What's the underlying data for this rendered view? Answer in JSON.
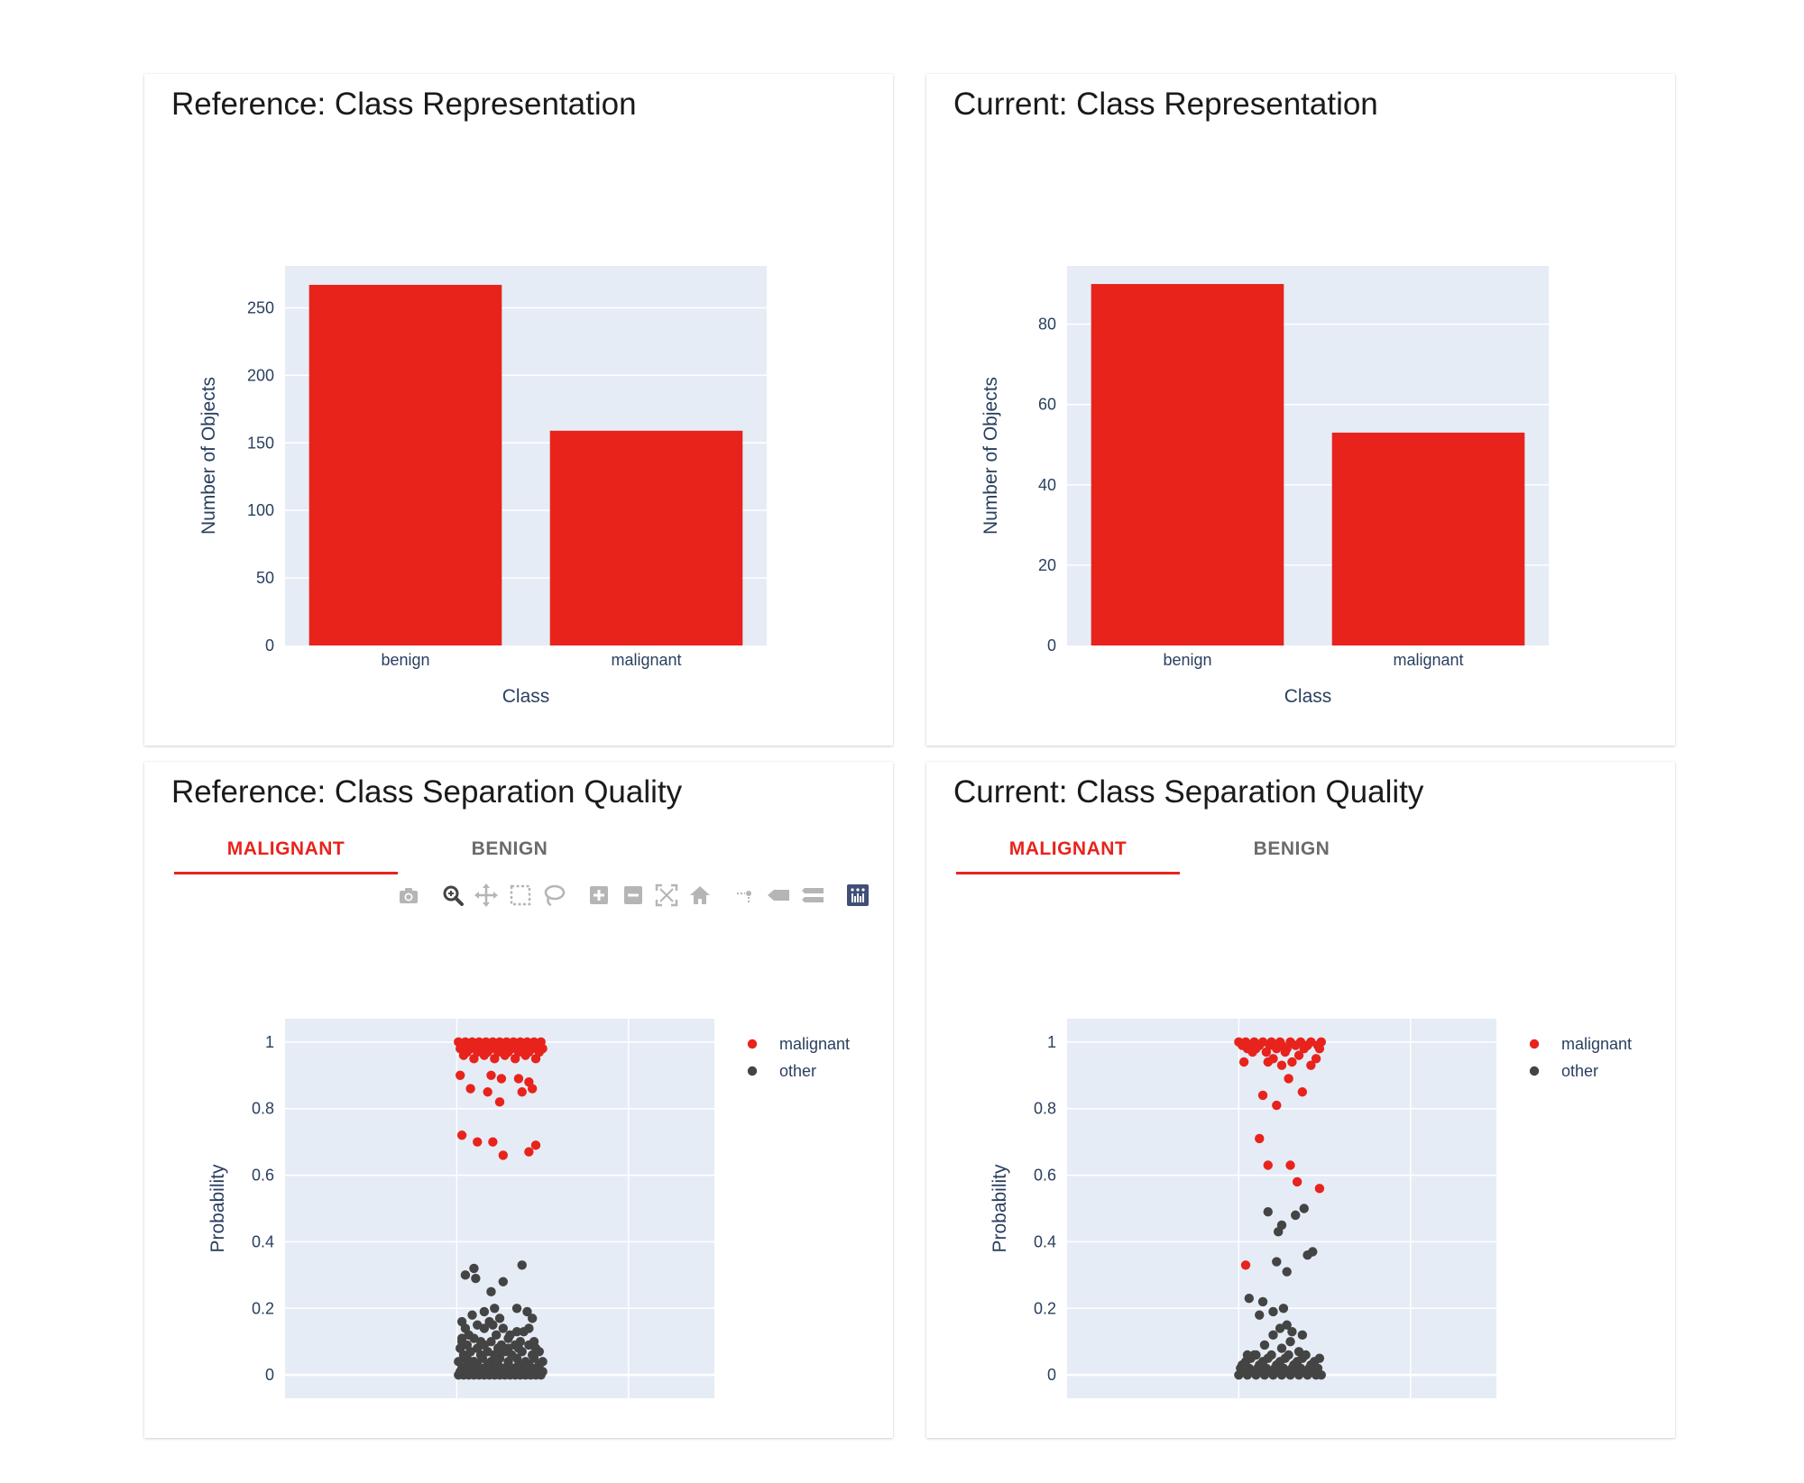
{
  "panels": {
    "ref_repr": {
      "title": "Reference: Class Representation"
    },
    "cur_repr": {
      "title": "Current: Class Representation"
    },
    "ref_sep": {
      "title": "Reference: Class Separation Quality",
      "tabs": [
        {
          "label": "MALIGNANT",
          "active": true
        },
        {
          "label": "BENIGN",
          "active": false
        }
      ]
    },
    "cur_sep": {
      "title": "Current: Class Separation Quality",
      "tabs": [
        {
          "label": "MALIGNANT",
          "active": true
        },
        {
          "label": "BENIGN",
          "active": false
        }
      ]
    }
  },
  "modebar_icons": [
    "camera-icon",
    "zoom-icon",
    "pan-icon",
    "box-select-icon",
    "lasso-select-icon",
    "zoom-in-icon",
    "zoom-out-icon",
    "autoscale-icon",
    "reset-axes-icon",
    "spike-lines-icon",
    "hover-closest-icon",
    "hover-compare-icon",
    "plotly-logo-icon"
  ],
  "colors": {
    "bar": "#e8231c",
    "malignant": "#e8231c",
    "other": "#444444",
    "plot_bg": "#e5ecf6",
    "grid": "#ffffff",
    "accent": "#e8231c"
  },
  "chart_data": [
    {
      "id": "ref_repr",
      "type": "bar",
      "title": "Reference: Class Representation",
      "categories": [
        "benign",
        "malignant"
      ],
      "values": [
        267,
        159
      ],
      "xlabel": "Class",
      "ylabel": "Number of Objects",
      "ylim": [
        0,
        281
      ],
      "yticks": [
        0,
        50,
        100,
        150,
        200,
        250
      ],
      "grid": true
    },
    {
      "id": "cur_repr",
      "type": "bar",
      "title": "Current: Class Representation",
      "categories": [
        "benign",
        "malignant"
      ],
      "values": [
        90,
        53
      ],
      "xlabel": "Class",
      "ylabel": "Number of Objects",
      "ylim": [
        0,
        94.5
      ],
      "yticks": [
        0,
        20,
        40,
        60,
        80
      ],
      "grid": true
    },
    {
      "id": "ref_sep",
      "type": "scatter",
      "title": "Reference: Class Separation Quality",
      "ylabel": "Probability",
      "ylim": [
        -0.07,
        1.07
      ],
      "yticks": [
        0,
        0.2,
        0.4,
        0.6,
        0.8,
        1
      ],
      "xlim": [
        -1,
        1.5
      ],
      "xgrid": [
        0,
        1
      ],
      "legend": "top-right",
      "series": [
        {
          "name": "malignant",
          "x": [
            0.01,
            0.05,
            0.09,
            0.13,
            0.17,
            0.21,
            0.25,
            0.29,
            0.33,
            0.37,
            0.41,
            0.45,
            0.49,
            0.03,
            0.07,
            0.11,
            0.15,
            0.19,
            0.23,
            0.27,
            0.31,
            0.35,
            0.39,
            0.43,
            0.47,
            0.02,
            0.08,
            0.14,
            0.2,
            0.26,
            0.32,
            0.38,
            0.44,
            0.5,
            0.06,
            0.12,
            0.18,
            0.24,
            0.3,
            0.36,
            0.42,
            0.48,
            0.04,
            0.16,
            0.28,
            0.4,
            0.1,
            0.22,
            0.34,
            0.46,
            0.02,
            0.2,
            0.26,
            0.36,
            0.42,
            0.44,
            0.08,
            0.38,
            0.18,
            0.25,
            0.03,
            0.12,
            0.21,
            0.27,
            0.42,
            0.46
          ],
          "y": [
            1,
            1,
            1,
            1,
            1,
            1,
            1,
            1,
            1,
            1,
            1,
            1,
            1,
            0.99,
            0.99,
            0.99,
            0.99,
            0.99,
            0.99,
            0.99,
            0.99,
            0.99,
            0.99,
            0.99,
            0.99,
            0.98,
            0.98,
            0.98,
            0.98,
            0.98,
            0.98,
            0.98,
            0.98,
            0.98,
            0.97,
            0.97,
            0.97,
            0.97,
            0.97,
            0.97,
            0.97,
            0.97,
            0.96,
            0.96,
            0.96,
            0.96,
            0.95,
            0.95,
            0.95,
            0.95,
            0.9,
            0.9,
            0.89,
            0.89,
            0.88,
            0.86,
            0.86,
            0.85,
            0.85,
            0.82,
            0.72,
            0.7,
            0.7,
            0.66,
            0.67,
            0.69
          ]
        },
        {
          "name": "other",
          "x": [
            0.01,
            0.04,
            0.07,
            0.1,
            0.13,
            0.16,
            0.19,
            0.22,
            0.25,
            0.28,
            0.31,
            0.34,
            0.37,
            0.4,
            0.43,
            0.46,
            0.49,
            0.02,
            0.05,
            0.08,
            0.11,
            0.14,
            0.17,
            0.2,
            0.23,
            0.26,
            0.29,
            0.32,
            0.35,
            0.38,
            0.41,
            0.44,
            0.47,
            0.5,
            0.03,
            0.09,
            0.15,
            0.21,
            0.27,
            0.33,
            0.39,
            0.45,
            0.06,
            0.12,
            0.18,
            0.24,
            0.3,
            0.36,
            0.42,
            0.48,
            0.01,
            0.1,
            0.2,
            0.3,
            0.4,
            0.5,
            0.05,
            0.15,
            0.25,
            0.35,
            0.45,
            0.04,
            0.14,
            0.22,
            0.32,
            0.44,
            0.08,
            0.18,
            0.28,
            0.38,
            0.48,
            0.02,
            0.12,
            0.24,
            0.36,
            0.46,
            0.06,
            0.16,
            0.26,
            0.34,
            0.42,
            0.03,
            0.2,
            0.37,
            0.1,
            0.3,
            0.45,
            0.07,
            0.23,
            0.39,
            0.05,
            0.16,
            0.27,
            0.42,
            0.12,
            0.21,
            0.35,
            0.03,
            0.19,
            0.25,
            0.44,
            0.09,
            0.31,
            0.16,
            0.22,
            0.41,
            0.05,
            0.11,
            0.38,
            0.1,
            0.2,
            0.27,
            0.35,
            0.06,
            0.3,
            0.23,
            0.14,
            0.18,
            0.41,
            0.03,
            0.25,
            0.1
          ],
          "y": [
            0,
            0,
            0,
            0,
            0,
            0,
            0,
            0,
            0,
            0,
            0,
            0,
            0,
            0,
            0,
            0,
            0,
            0.01,
            0.01,
            0.01,
            0.01,
            0.01,
            0.01,
            0.01,
            0.01,
            0.01,
            0.01,
            0.01,
            0.01,
            0.01,
            0.01,
            0.01,
            0.01,
            0.01,
            0.02,
            0.02,
            0.02,
            0.02,
            0.02,
            0.02,
            0.02,
            0.02,
            0.03,
            0.03,
            0.03,
            0.03,
            0.03,
            0.03,
            0.03,
            0.03,
            0.04,
            0.04,
            0.04,
            0.04,
            0.04,
            0.04,
            0.05,
            0.05,
            0.05,
            0.05,
            0.05,
            0.06,
            0.06,
            0.06,
            0.06,
            0.06,
            0.07,
            0.07,
            0.07,
            0.07,
            0.07,
            0.08,
            0.08,
            0.08,
            0.08,
            0.08,
            0.09,
            0.09,
            0.09,
            0.09,
            0.09,
            0.1,
            0.1,
            0.1,
            0.11,
            0.11,
            0.1,
            0.12,
            0.12,
            0.13,
            0.14,
            0.14,
            0.14,
            0.14,
            0.15,
            0.15,
            0.13,
            0.16,
            0.16,
            0.17,
            0.17,
            0.18,
            0.12,
            0.19,
            0.2,
            0.19,
            0.3,
            0.29,
            0.33,
            0.32,
            0.25,
            0.28,
            0.2,
            0.05,
            0.08,
            0.06,
            0.1,
            0.02,
            0.03,
            0.11,
            0.07,
            0.04
          ]
        }
      ]
    },
    {
      "id": "cur_sep",
      "type": "scatter",
      "title": "Current: Class Separation Quality",
      "ylabel": "Probability",
      "ylim": [
        -0.07,
        1.07
      ],
      "yticks": [
        0,
        0.2,
        0.4,
        0.6,
        0.8,
        1
      ],
      "xlim": [
        -1,
        1.5
      ],
      "xgrid": [
        0,
        1
      ],
      "legend": "top-right",
      "series": [
        {
          "name": "malignant",
          "x": [
            0.0,
            0.04,
            0.09,
            0.14,
            0.19,
            0.24,
            0.3,
            0.36,
            0.42,
            0.48,
            0.02,
            0.07,
            0.12,
            0.18,
            0.25,
            0.33,
            0.4,
            0.46,
            0.05,
            0.1,
            0.22,
            0.28,
            0.38,
            0.47,
            0.08,
            0.16,
            0.27,
            0.35,
            0.03,
            0.2,
            0.45,
            0.17,
            0.25,
            0.31,
            0.42,
            0.29,
            0.37,
            0.14,
            0.22,
            0.12,
            0.17,
            0.34,
            0.3,
            0.04,
            0.47
          ],
          "y": [
            1,
            1,
            1,
            1,
            1,
            1,
            1,
            1,
            1,
            1,
            0.99,
            0.99,
            0.99,
            0.99,
            0.99,
            0.99,
            0.99,
            0.99,
            0.98,
            0.98,
            0.98,
            0.98,
            0.98,
            0.98,
            0.97,
            0.97,
            0.97,
            0.96,
            0.94,
            0.95,
            0.95,
            0.94,
            0.93,
            0.94,
            0.93,
            0.89,
            0.85,
            0.84,
            0.81,
            0.71,
            0.63,
            0.58,
            0.63,
            0.33,
            0.56
          ]
        },
        {
          "name": "other",
          "x": [
            0.0,
            0.05,
            0.1,
            0.15,
            0.2,
            0.25,
            0.3,
            0.35,
            0.4,
            0.45,
            0.48,
            0.03,
            0.08,
            0.13,
            0.18,
            0.23,
            0.28,
            0.33,
            0.38,
            0.43,
            0.01,
            0.06,
            0.11,
            0.16,
            0.21,
            0.26,
            0.31,
            0.36,
            0.41,
            0.46,
            0.02,
            0.12,
            0.22,
            0.32,
            0.42,
            0.04,
            0.14,
            0.24,
            0.34,
            0.44,
            0.07,
            0.17,
            0.27,
            0.37,
            0.47,
            0.09,
            0.19,
            0.29,
            0.39,
            0.05,
            0.25,
            0.35,
            0.15,
            0.3,
            0.1,
            0.2,
            0.28,
            0.37,
            0.24,
            0.06,
            0.14,
            0.31,
            0.2,
            0.26,
            0.12,
            0.28,
            0.22,
            0.4,
            0.43,
            0.38,
            0.33,
            0.25,
            0.23,
            0.17
          ],
          "y": [
            0,
            0,
            0,
            0,
            0,
            0,
            0,
            0,
            0,
            0,
            0,
            0.01,
            0.01,
            0.01,
            0.01,
            0.01,
            0.01,
            0.01,
            0.01,
            0.01,
            0.02,
            0.02,
            0.02,
            0.02,
            0.02,
            0.02,
            0.02,
            0.02,
            0.02,
            0.02,
            0.03,
            0.03,
            0.03,
            0.03,
            0.03,
            0.04,
            0.04,
            0.04,
            0.04,
            0.04,
            0.05,
            0.05,
            0.05,
            0.05,
            0.05,
            0.06,
            0.06,
            0.06,
            0.06,
            0.06,
            0.08,
            0.07,
            0.09,
            0.1,
            0.06,
            0.12,
            0.15,
            0.12,
            0.14,
            0.23,
            0.22,
            0.13,
            0.19,
            0.2,
            0.18,
            0.31,
            0.34,
            0.36,
            0.37,
            0.5,
            0.48,
            0.45,
            0.43,
            0.49
          ]
        }
      ]
    }
  ]
}
